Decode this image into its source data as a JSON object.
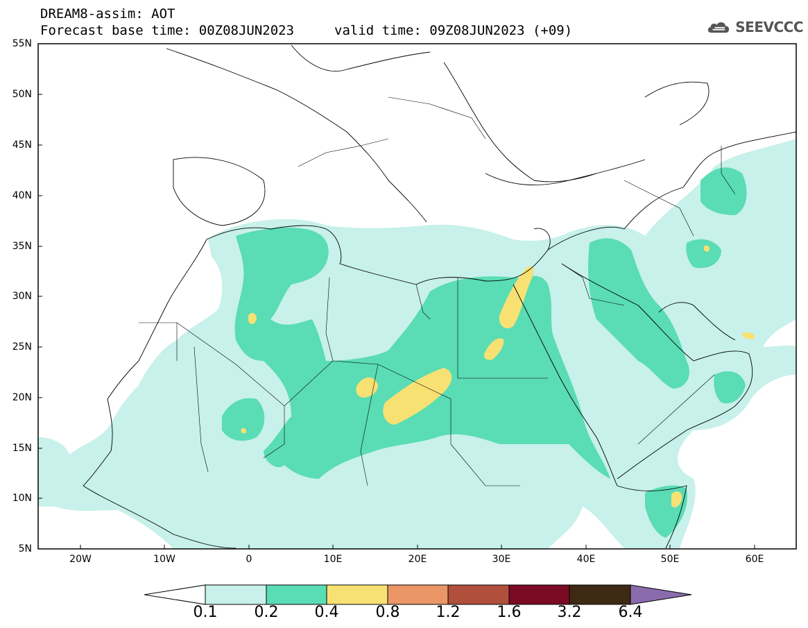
{
  "header": {
    "line1": "DREAM8-assim: AOT",
    "base_time": "Forecast base time: 00Z08JUN2023",
    "valid_time": "valid time: 09Z08JUN2023 (+09)",
    "logo_text": "SEEVCCC",
    "logo_icon": "cloud-icon"
  },
  "map": {
    "lat_labels": [
      "55N",
      "50N",
      "45N",
      "40N",
      "35N",
      "30N",
      "25N",
      "20N",
      "15N",
      "10N",
      "5N"
    ],
    "lon_labels": [
      "20W",
      "10W",
      "0",
      "10E",
      "20E",
      "30E",
      "40E",
      "50E",
      "60E"
    ],
    "lon_range": [
      -25,
      65
    ],
    "lat_range": [
      5,
      55
    ]
  },
  "colorbar": {
    "levels": [
      "0.1",
      "0.2",
      "0.4",
      "0.8",
      "1.2",
      "1.6",
      "3.2",
      "6.4"
    ],
    "colors": [
      "#ffffff",
      "#c7f1ea",
      "#5adcb4",
      "#f7e173",
      "#ea9666",
      "#b04f3c",
      "#7b0b25",
      "#3e2914",
      "#8a6bab"
    ]
  }
}
